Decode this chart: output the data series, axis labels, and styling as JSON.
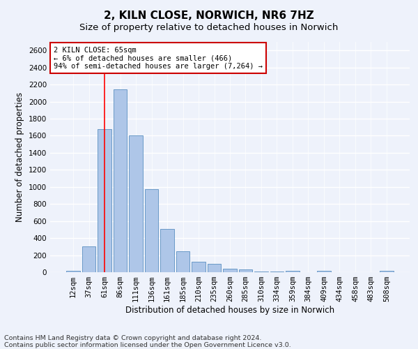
{
  "title": "2, KILN CLOSE, NORWICH, NR6 7HZ",
  "subtitle": "Size of property relative to detached houses in Norwich",
  "xlabel": "Distribution of detached houses by size in Norwich",
  "ylabel": "Number of detached properties",
  "categories": [
    "12sqm",
    "37sqm",
    "61sqm",
    "86sqm",
    "111sqm",
    "136sqm",
    "161sqm",
    "185sqm",
    "210sqm",
    "235sqm",
    "260sqm",
    "285sqm",
    "310sqm",
    "334sqm",
    "359sqm",
    "384sqm",
    "409sqm",
    "434sqm",
    "458sqm",
    "483sqm",
    "508sqm"
  ],
  "values": [
    20,
    300,
    1680,
    2140,
    1600,
    970,
    510,
    248,
    120,
    100,
    45,
    35,
    8,
    5,
    20,
    3,
    20,
    3,
    3,
    3,
    20
  ],
  "bar_color": "#aec6e8",
  "bar_edge_color": "#5a8fc0",
  "red_line_x": 2.0,
  "annotation_title": "2 KILN CLOSE: 65sqm",
  "annotation_line1": "← 6% of detached houses are smaller (466)",
  "annotation_line2": "94% of semi-detached houses are larger (7,264) →",
  "annotation_box_color": "#ffffff",
  "annotation_box_edge": "#cc0000",
  "ylim": [
    0,
    2700
  ],
  "yticks": [
    0,
    200,
    400,
    600,
    800,
    1000,
    1200,
    1400,
    1600,
    1800,
    2000,
    2200,
    2400,
    2600
  ],
  "footer_line1": "Contains HM Land Registry data © Crown copyright and database right 2024.",
  "footer_line2": "Contains public sector information licensed under the Open Government Licence v3.0.",
  "background_color": "#eef2fb",
  "grid_color": "#ffffff",
  "title_fontsize": 11,
  "subtitle_fontsize": 9.5,
  "axis_label_fontsize": 8.5,
  "tick_fontsize": 7.5,
  "footer_fontsize": 6.8,
  "annotation_fontsize": 7.5
}
